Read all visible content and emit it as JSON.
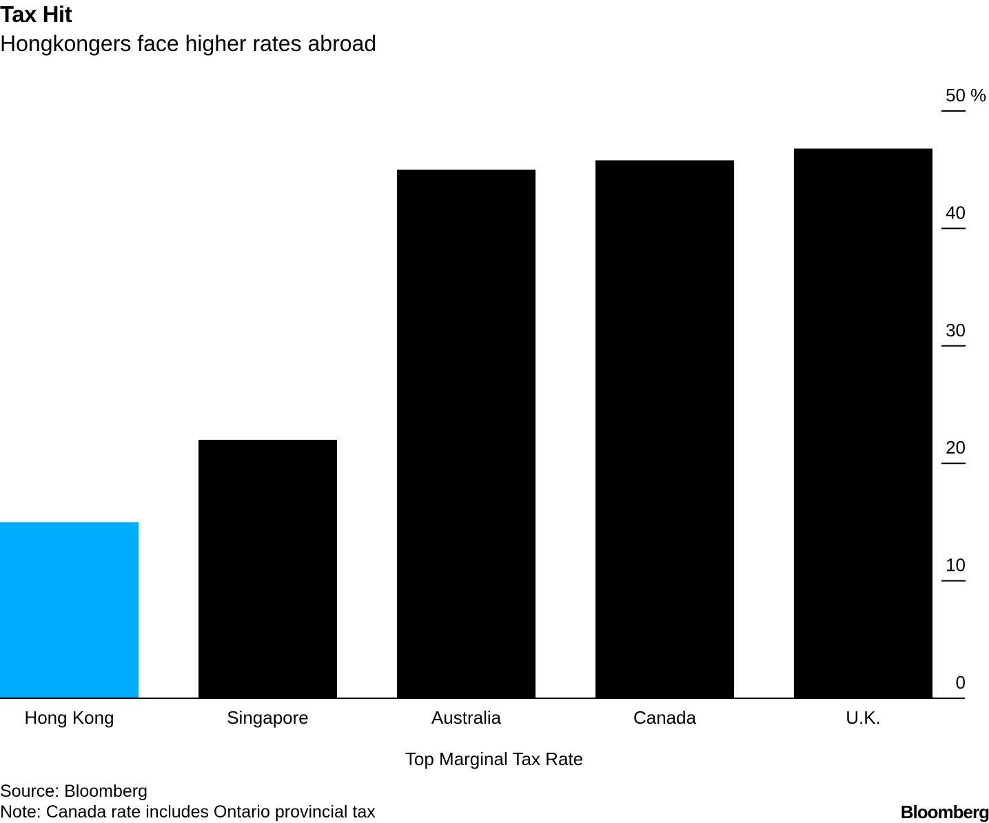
{
  "header": {
    "title": "Tax Hit",
    "subtitle": "Hongkongers face higher rates abroad"
  },
  "chart_data": {
    "type": "bar",
    "categories": [
      "Hong Kong",
      "Singapore",
      "Australia",
      "Canada",
      "U.K."
    ],
    "values": [
      15,
      22,
      45,
      45.8,
      46.8
    ],
    "xlabel": "Top Marginal Tax Rate",
    "ylabel": "",
    "unit": "%",
    "ylim": [
      0,
      50
    ],
    "yticks": [
      0,
      10,
      20,
      30,
      40,
      50
    ],
    "y_axis_side": "right",
    "grid": false,
    "highlight_category": "Hong Kong",
    "colors": {
      "highlight": "#00adff",
      "default": "#000000"
    }
  },
  "footer": {
    "source": "Source: Bloomberg",
    "note": "Note: Canada rate includes Ontario provincial tax",
    "brand": "Bloomberg"
  }
}
